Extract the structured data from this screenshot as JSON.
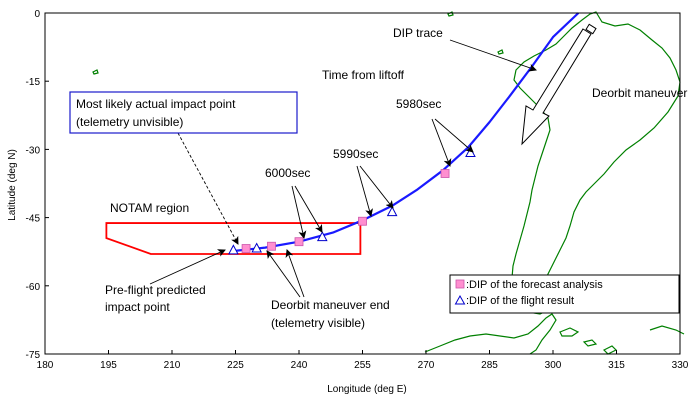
{
  "chart_data": {
    "type": "line",
    "xlabel": "Longitude (deg E)",
    "ylabel": "Latitude (deg N)",
    "xlim": [
      180,
      330
    ],
    "ylim": [
      -75,
      0
    ],
    "xticks": [
      "180",
      "195",
      "210",
      "225",
      "240",
      "255",
      "270",
      "285",
      "300",
      "315",
      "330"
    ],
    "yticks": [
      "0",
      "-15",
      "-30",
      "-45",
      "-60",
      "-75"
    ],
    "grid": false,
    "legend_position": "bottom-right",
    "colors": {
      "trace": "#1a1aff",
      "forecast_fill": "#ff8fd0",
      "forecast_stroke": "#cc55aa",
      "flight": "#0000cc",
      "notam": "#ff0000",
      "coast": "#008000",
      "callout_box": "#1a1acc"
    },
    "series": [
      {
        "name": "DIP trace",
        "points": [
          [
            224,
            -52.4
          ],
          [
            232,
            -51.6
          ],
          [
            240,
            -50.3
          ],
          [
            248,
            -48.3
          ],
          [
            255,
            -45.6
          ],
          [
            262,
            -42.4
          ],
          [
            268,
            -38.8
          ],
          [
            274,
            -34.6
          ],
          [
            280,
            -29.5
          ],
          [
            285,
            -24
          ],
          [
            290,
            -18
          ],
          [
            295,
            -11.8
          ],
          [
            300,
            -5.3
          ],
          [
            306,
            0
          ]
        ]
      },
      {
        "name": "DIP of the forecast analysis",
        "points": [
          [
            227.5,
            -51.8
          ],
          [
            233.5,
            -51.3
          ],
          [
            240,
            -50.3
          ],
          [
            255,
            -45.8
          ],
          [
            274.5,
            -35.3
          ]
        ]
      },
      {
        "name": "DIP of the flight result",
        "points": [
          [
            224.5,
            -52.2
          ],
          [
            230,
            -51.8
          ],
          [
            245.5,
            -49.3
          ],
          [
            262,
            -43.8
          ],
          [
            280.5,
            -30.8
          ]
        ]
      }
    ],
    "notam_region": [
      [
        194.5,
        -46.2
      ],
      [
        254.5,
        -46.2
      ],
      [
        254.5,
        -53
      ],
      [
        205,
        -53
      ],
      [
        194.5,
        -49.5
      ]
    ],
    "annotations": {
      "dip_trace": "DIP trace",
      "time_from_liftoff": "Time from liftoff",
      "deorbit_maneuver": "Deorbit maneuver",
      "most_likely_line1": "Most likely actual impact point",
      "most_likely_line2": "(telemetry unvisible)",
      "t5980": "5980sec",
      "t5990": "5990sec",
      "t6000": "6000sec",
      "notam": "NOTAM region",
      "preflight_line1": "Pre-flight predicted",
      "preflight_line2": "impact point",
      "deorbit_end_line1": "Deorbit maneuver end",
      "deorbit_end_line2": "(telemetry visible)"
    },
    "legend": [
      {
        "symbol": "square",
        "label": ":DIP of the forecast analysis"
      },
      {
        "symbol": "triangle",
        "label": ":DIP of the flight result"
      }
    ]
  }
}
